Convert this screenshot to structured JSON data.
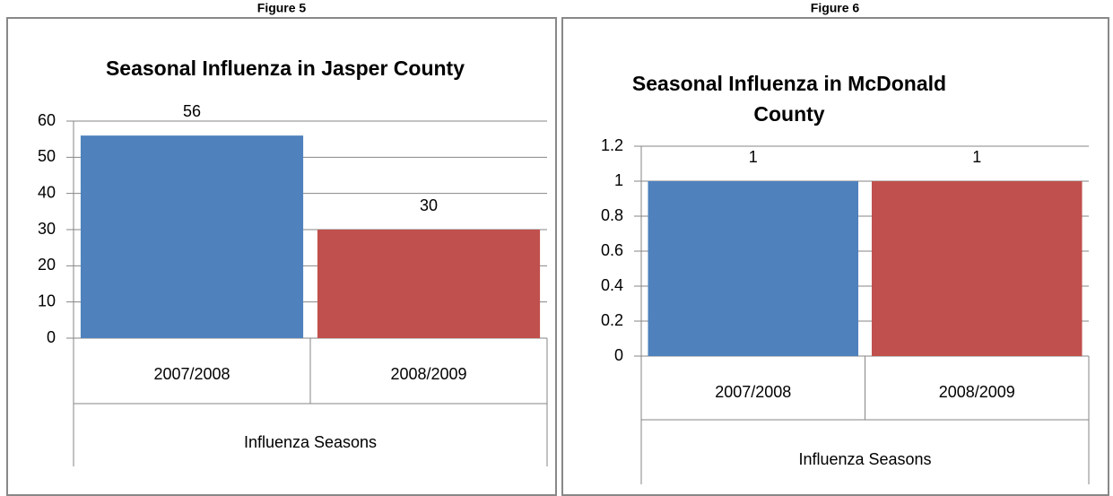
{
  "chart_data": [
    {
      "type": "bar",
      "figure_label": "Figure 5",
      "title": "Seasonal Influenza in Jasper County",
      "x_label": "Influenza Seasons",
      "categories": [
        "2007/2008",
        "2008/2009"
      ],
      "values": [
        56,
        30
      ],
      "colors": [
        "#4f81bd",
        "#c0504d"
      ],
      "ylim": [
        0,
        60
      ],
      "yticks": [
        0,
        10,
        20,
        30,
        40,
        50,
        60
      ],
      "grid": true
    },
    {
      "type": "bar",
      "figure_label": "Figure 6",
      "title": "Seasonal Influenza in McDonald County",
      "x_label": "Influenza Seasons",
      "categories": [
        "2007/2008",
        "2008/2009"
      ],
      "values": [
        1,
        1
      ],
      "colors": [
        "#4f81bd",
        "#c0504d"
      ],
      "ylim": [
        0,
        1.2
      ],
      "yticks": [
        0,
        0.2,
        0.4,
        0.6,
        0.8,
        1,
        1.2
      ],
      "grid": true
    }
  ]
}
